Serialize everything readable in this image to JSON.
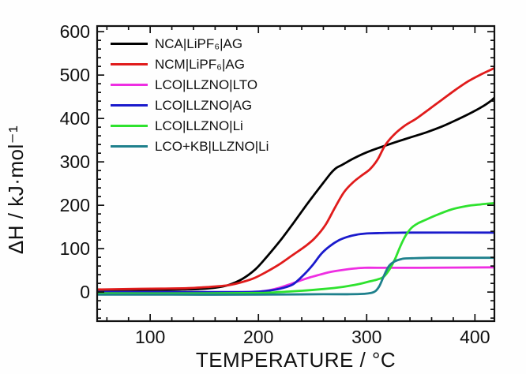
{
  "chart_data": {
    "type": "line",
    "title": "",
    "xlabel": "TEMPERATURE / °C",
    "ylabel": "ΔH / kJ·mol⁻¹",
    "xlim": [
      51,
      418
    ],
    "ylim": [
      -67,
      613
    ],
    "x_major_ticks": [
      100,
      200,
      300,
      400
    ],
    "y_major_ticks": [
      0,
      100,
      200,
      300,
      400,
      500,
      600
    ],
    "x_minor_step": 20,
    "y_minor_step": 20,
    "grid": false,
    "legend_position": "top-left-inside",
    "axis_color": "#111111",
    "series": [
      {
        "name": "NCA|LiPF₆|AG",
        "color": "#000000",
        "points": [
          [
            51,
            5
          ],
          [
            80,
            5
          ],
          [
            110,
            5
          ],
          [
            130,
            6
          ],
          [
            145,
            7
          ],
          [
            160,
            10
          ],
          [
            172,
            16
          ],
          [
            185,
            30
          ],
          [
            197,
            52
          ],
          [
            208,
            82
          ],
          [
            220,
            118
          ],
          [
            232,
            158
          ],
          [
            243,
            196
          ],
          [
            252,
            226
          ],
          [
            260,
            252
          ],
          [
            267,
            274
          ],
          [
            272,
            286
          ],
          [
            278,
            294
          ],
          [
            288,
            308
          ],
          [
            300,
            322
          ],
          [
            312,
            333
          ],
          [
            325,
            344
          ],
          [
            340,
            356
          ],
          [
            355,
            368
          ],
          [
            370,
            382
          ],
          [
            385,
            399
          ],
          [
            398,
            415
          ],
          [
            408,
            429
          ],
          [
            415,
            441
          ],
          [
            418,
            448
          ]
        ]
      },
      {
        "name": "NCM|LiPF₆|AG",
        "color": "#e01b1b",
        "points": [
          [
            51,
            6
          ],
          [
            80,
            7
          ],
          [
            110,
            8
          ],
          [
            135,
            9
          ],
          [
            155,
            12
          ],
          [
            170,
            15
          ],
          [
            182,
            21
          ],
          [
            195,
            31
          ],
          [
            207,
            46
          ],
          [
            220,
            65
          ],
          [
            232,
            86
          ],
          [
            243,
            105
          ],
          [
            252,
            124
          ],
          [
            262,
            155
          ],
          [
            271,
            196
          ],
          [
            279,
            230
          ],
          [
            287,
            252
          ],
          [
            295,
            268
          ],
          [
            303,
            283
          ],
          [
            310,
            305
          ],
          [
            317,
            338
          ],
          [
            325,
            362
          ],
          [
            335,
            383
          ],
          [
            346,
            400
          ],
          [
            358,
            422
          ],
          [
            370,
            444
          ],
          [
            382,
            466
          ],
          [
            394,
            486
          ],
          [
            406,
            502
          ],
          [
            418,
            516
          ]
        ]
      },
      {
        "name": "LCO|LLZNO|LTO",
        "color": "#ee2ee2",
        "points": [
          [
            51,
            -1
          ],
          [
            120,
            -1
          ],
          [
            170,
            -1
          ],
          [
            195,
            0
          ],
          [
            207,
            3
          ],
          [
            218,
            9
          ],
          [
            228,
            17
          ],
          [
            238,
            26
          ],
          [
            248,
            34
          ],
          [
            258,
            41
          ],
          [
            268,
            47
          ],
          [
            278,
            51
          ],
          [
            288,
            54
          ],
          [
            298,
            56
          ],
          [
            310,
            56
          ],
          [
            350,
            56
          ],
          [
            418,
            57
          ]
        ]
      },
      {
        "name": "LCO|LLZNO|AG",
        "color": "#1a1acc",
        "points": [
          [
            51,
            0
          ],
          [
            140,
            0
          ],
          [
            185,
            0
          ],
          [
            200,
            1
          ],
          [
            212,
            4
          ],
          [
            222,
            9
          ],
          [
            232,
            18
          ],
          [
            242,
            40
          ],
          [
            250,
            62
          ],
          [
            258,
            88
          ],
          [
            266,
            106
          ],
          [
            274,
            119
          ],
          [
            282,
            127
          ],
          [
            290,
            132
          ],
          [
            300,
            135
          ],
          [
            312,
            136
          ],
          [
            340,
            137
          ],
          [
            418,
            137
          ]
        ]
      },
      {
        "name": "LCO|LLZNO|Li",
        "color": "#2ee22e",
        "points": [
          [
            51,
            -3
          ],
          [
            150,
            -3
          ],
          [
            200,
            -2
          ],
          [
            220,
            0
          ],
          [
            240,
            3
          ],
          [
            260,
            7
          ],
          [
            278,
            12
          ],
          [
            292,
            18
          ],
          [
            302,
            24
          ],
          [
            310,
            29
          ],
          [
            316,
            36
          ],
          [
            321,
            52
          ],
          [
            326,
            75
          ],
          [
            331,
            105
          ],
          [
            336,
            130
          ],
          [
            341,
            147
          ],
          [
            347,
            158
          ],
          [
            354,
            166
          ],
          [
            365,
            178
          ],
          [
            378,
            190
          ],
          [
            392,
            198
          ],
          [
            405,
            202
          ],
          [
            418,
            205
          ]
        ]
      },
      {
        "name": "LCO+KB|LLZNO|Li",
        "color": "#1e808c",
        "points": [
          [
            51,
            -6
          ],
          [
            120,
            -6
          ],
          [
            200,
            -6
          ],
          [
            260,
            -5
          ],
          [
            285,
            -5
          ],
          [
            298,
            -4
          ],
          [
            304,
            -2
          ],
          [
            308,
            2
          ],
          [
            312,
            15
          ],
          [
            316,
            38
          ],
          [
            320,
            58
          ],
          [
            324,
            68
          ],
          [
            328,
            73
          ],
          [
            334,
            77
          ],
          [
            342,
            78
          ],
          [
            360,
            79
          ],
          [
            390,
            79
          ],
          [
            418,
            79
          ]
        ]
      }
    ]
  }
}
